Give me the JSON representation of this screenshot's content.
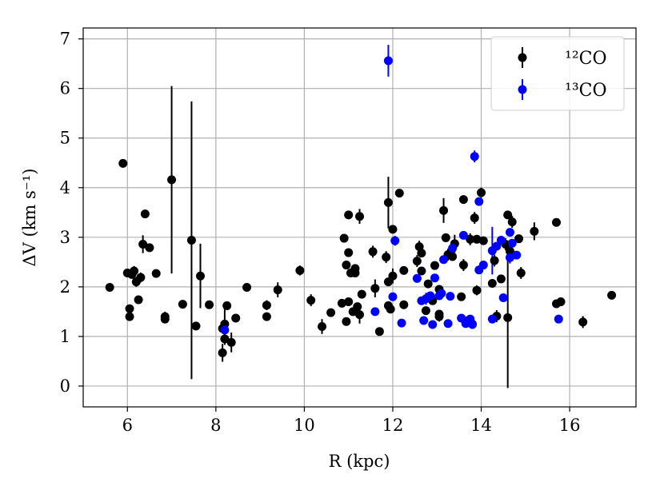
{
  "chart_data": {
    "type": "scatter",
    "xlabel": "R (kpc)",
    "ylabel": "ΔV (km s⁻¹)",
    "xlim": [
      5.0,
      17.5
    ],
    "ylim": [
      -0.42,
      7.22
    ],
    "xticks": [
      6,
      8,
      10,
      12,
      14,
      16
    ],
    "yticks": [
      0,
      1,
      2,
      3,
      4,
      5,
      6,
      7
    ],
    "grid": true,
    "legend_position": "top-right",
    "series": [
      {
        "name": "12CO",
        "legend_label": "¹²CO",
        "color": "#000000",
        "points": [
          [
            5.6,
            1.99,
            0
          ],
          [
            5.9,
            4.49,
            0
          ],
          [
            6.0,
            2.28,
            0
          ],
          [
            6.05,
            1.56,
            0
          ],
          [
            6.05,
            1.4,
            0
          ],
          [
            6.1,
            2.25,
            0
          ],
          [
            6.15,
            2.32,
            0.1
          ],
          [
            6.2,
            2.1,
            0.1
          ],
          [
            6.25,
            1.74,
            0
          ],
          [
            6.3,
            2.19,
            0.1
          ],
          [
            6.35,
            2.86,
            0.18
          ],
          [
            6.4,
            3.47,
            0
          ],
          [
            6.5,
            2.79,
            0
          ],
          [
            6.65,
            2.27,
            0
          ],
          [
            6.85,
            1.4,
            0.1
          ],
          [
            6.85,
            1.35,
            0
          ],
          [
            7.0,
            4.16,
            1.89
          ],
          [
            7.25,
            1.65,
            0
          ],
          [
            7.45,
            2.94,
            2.8
          ],
          [
            7.55,
            1.21,
            0
          ],
          [
            7.65,
            2.22,
            0.65
          ],
          [
            7.85,
            1.64,
            0
          ],
          [
            8.15,
            1.16,
            0.05
          ],
          [
            8.15,
            0.67,
            0.18
          ],
          [
            8.2,
            0.95,
            0.1
          ],
          [
            8.2,
            1.25,
            0.42
          ],
          [
            8.25,
            1.62,
            0
          ],
          [
            8.35,
            0.88,
            0.2
          ],
          [
            8.45,
            1.37,
            0
          ],
          [
            8.7,
            1.99,
            0
          ],
          [
            9.15,
            1.63,
            0.1
          ],
          [
            9.15,
            1.4,
            0
          ],
          [
            9.4,
            1.94,
            0.15
          ],
          [
            9.9,
            2.33,
            0.1
          ],
          [
            10.15,
            1.73,
            0.12
          ],
          [
            10.4,
            1.2,
            0.15
          ],
          [
            10.6,
            1.48,
            0
          ],
          [
            10.85,
            1.67,
            0
          ],
          [
            10.9,
            2.98,
            0
          ],
          [
            10.95,
            1.3,
            0
          ],
          [
            10.95,
            2.44,
            0
          ],
          [
            11.0,
            2.69,
            0
          ],
          [
            11.0,
            3.45,
            0
          ],
          [
            11.0,
            1.7,
            0
          ],
          [
            11.05,
            2.28,
            0
          ],
          [
            11.1,
            1.5,
            0
          ],
          [
            11.15,
            2.37,
            0
          ],
          [
            11.15,
            2.28,
            0
          ],
          [
            11.2,
            1.6,
            0
          ],
          [
            11.25,
            1.44,
            0.18
          ],
          [
            11.25,
            3.42,
            0.15
          ],
          [
            11.3,
            1.85,
            0
          ],
          [
            11.55,
            2.71,
            0.12
          ],
          [
            11.6,
            1.97,
            0.18
          ],
          [
            11.7,
            1.1,
            0
          ],
          [
            11.85,
            2.6,
            0.12
          ],
          [
            11.9,
            3.7,
            0.52
          ],
          [
            11.9,
            2.1,
            0
          ],
          [
            11.9,
            1.62,
            0
          ],
          [
            11.95,
            1.55,
            0
          ],
          [
            12.0,
            3.16,
            0
          ],
          [
            12.0,
            2.22,
            0.15
          ],
          [
            12.15,
            3.89,
            0
          ],
          [
            12.25,
            2.33,
            0
          ],
          [
            12.25,
            1.64,
            0
          ],
          [
            12.55,
            2.52,
            0.12
          ],
          [
            12.6,
            2.81,
            0.12
          ],
          [
            12.65,
            2.32,
            0
          ],
          [
            12.65,
            2.68,
            0
          ],
          [
            12.75,
            1.52,
            0
          ],
          [
            12.8,
            2.06,
            0
          ],
          [
            12.85,
            1.8,
            0
          ],
          [
            12.9,
            1.72,
            0
          ],
          [
            12.95,
            2.43,
            0
          ],
          [
            13.05,
            1.95,
            0
          ],
          [
            13.05,
            1.4,
            0.1
          ],
          [
            13.05,
            1.45,
            0
          ],
          [
            13.15,
            3.54,
            0.25
          ],
          [
            13.2,
            2.99,
            0
          ],
          [
            13.25,
            2.65,
            0.12
          ],
          [
            13.35,
            2.61,
            0
          ],
          [
            13.4,
            2.87,
            0.18
          ],
          [
            13.55,
            1.8,
            0
          ],
          [
            13.6,
            3.76,
            0
          ],
          [
            13.6,
            2.44,
            0.12
          ],
          [
            13.7,
            1.32,
            0
          ],
          [
            13.75,
            2.96,
            0.12
          ],
          [
            13.8,
            1.25,
            0
          ],
          [
            13.85,
            3.39,
            0.12
          ],
          [
            13.9,
            1.93,
            0.1
          ],
          [
            13.9,
            2.96,
            0
          ],
          [
            14.0,
            3.9,
            0.1
          ],
          [
            14.05,
            2.93,
            0
          ],
          [
            14.25,
            2.07,
            0
          ],
          [
            14.3,
            2.53,
            0.12
          ],
          [
            14.35,
            1.41,
            0.12
          ],
          [
            14.45,
            2.16,
            0
          ],
          [
            14.55,
            2.86,
            0.12
          ],
          [
            14.6,
            3.45,
            0
          ],
          [
            14.6,
            1.38,
            1.42
          ],
          [
            14.65,
            2.72,
            0
          ],
          [
            14.7,
            3.31,
            0.12
          ],
          [
            14.85,
            2.97,
            0
          ],
          [
            14.9,
            2.28,
            0.12
          ],
          [
            15.2,
            3.12,
            0.18
          ],
          [
            15.7,
            3.3,
            0
          ],
          [
            15.7,
            1.66,
            0
          ],
          [
            15.8,
            1.7,
            0
          ],
          [
            16.3,
            1.29,
            0.12
          ],
          [
            16.95,
            1.83,
            0
          ]
        ]
      },
      {
        "name": "13CO",
        "legend_label": "¹³CO",
        "color": "#0000ff",
        "points": [
          [
            8.2,
            1.13,
            0
          ],
          [
            11.6,
            1.5,
            0
          ],
          [
            11.9,
            6.56,
            0.32
          ],
          [
            12.0,
            1.8,
            0
          ],
          [
            12.05,
            2.93,
            0.1
          ],
          [
            12.2,
            1.27,
            0
          ],
          [
            12.55,
            2.17,
            0
          ],
          [
            12.65,
            1.72,
            0
          ],
          [
            12.7,
            1.32,
            0
          ],
          [
            12.75,
            1.76,
            0.12
          ],
          [
            12.85,
            1.82,
            0
          ],
          [
            12.9,
            1.24,
            0
          ],
          [
            12.95,
            2.18,
            0
          ],
          [
            13.05,
            1.82,
            0
          ],
          [
            13.1,
            1.87,
            0
          ],
          [
            13.15,
            2.55,
            0
          ],
          [
            13.25,
            1.26,
            0
          ],
          [
            13.3,
            1.81,
            0
          ],
          [
            13.35,
            2.78,
            0
          ],
          [
            13.55,
            1.37,
            0
          ],
          [
            13.6,
            3.04,
            0
          ],
          [
            13.65,
            1.26,
            0
          ],
          [
            13.7,
            1.3,
            0
          ],
          [
            13.75,
            1.35,
            0
          ],
          [
            13.8,
            1.24,
            0
          ],
          [
            13.85,
            4.63,
            0.12
          ],
          [
            13.95,
            3.72,
            0
          ],
          [
            13.95,
            2.34,
            0
          ],
          [
            14.05,
            2.44,
            0
          ],
          [
            14.25,
            1.35,
            0
          ],
          [
            14.25,
            2.73,
            0.48
          ],
          [
            14.35,
            2.82,
            0
          ],
          [
            14.45,
            2.94,
            0
          ],
          [
            14.5,
            1.78,
            0
          ],
          [
            14.65,
            3.1,
            0
          ],
          [
            14.65,
            2.59,
            0.12
          ],
          [
            14.7,
            2.88,
            0
          ],
          [
            14.8,
            2.64,
            0
          ],
          [
            15.75,
            1.35,
            0
          ]
        ]
      }
    ]
  }
}
